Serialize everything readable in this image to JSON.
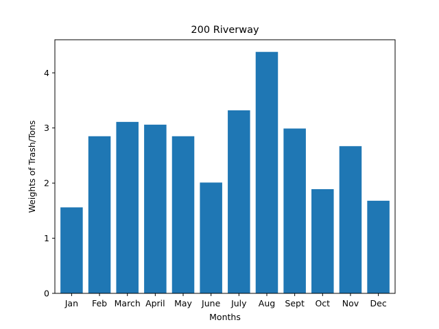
{
  "chart_data": {
    "type": "bar",
    "title": "200 Riverway",
    "xlabel": "Months",
    "ylabel": "Weights of Trash/Tons",
    "categories": [
      "Jan",
      "Feb",
      "March",
      "April",
      "May",
      "June",
      "July",
      "Aug",
      "Sept",
      "Oct",
      "Nov",
      "Dec"
    ],
    "values": [
      1.56,
      2.85,
      3.11,
      3.06,
      2.85,
      2.01,
      3.32,
      4.38,
      2.99,
      1.89,
      2.67,
      1.68
    ],
    "ylim": [
      0,
      4.6
    ],
    "yticks": [
      0,
      1,
      2,
      3,
      4
    ],
    "ytick_labels": [
      "0",
      "1",
      "2",
      "3",
      "4"
    ],
    "grid": false,
    "bar_color": "#1f77b4"
  }
}
